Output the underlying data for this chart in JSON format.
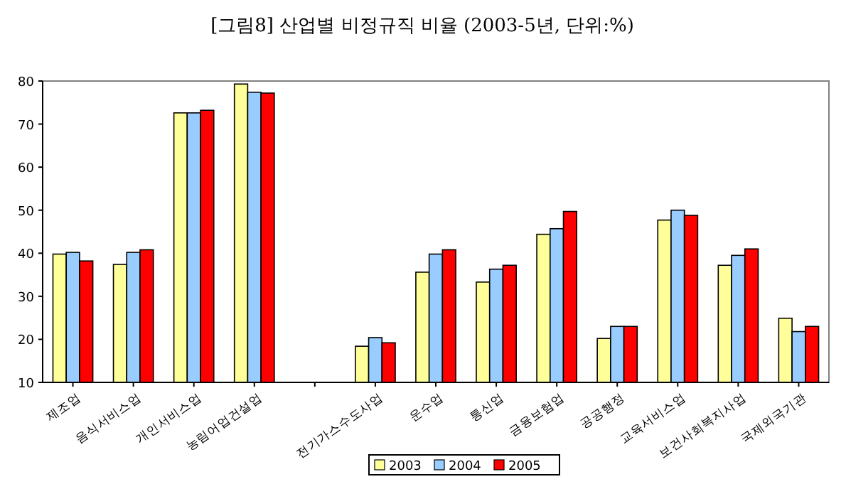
{
  "chart_data": {
    "type": "bar",
    "title": "[그림8] 산업별 비정규직 비율 (2003-5년, 단위:%)",
    "categories": [
      "제조업",
      "음식서비스업",
      "개인서비스업",
      "농림어업건설업",
      null,
      "전기가스수도사업",
      "운수업",
      "통신업",
      "금융보험업",
      "공공행정",
      "교육서비스업",
      "보건사회복지사업",
      "국제외국기관"
    ],
    "series": [
      {
        "name": "2003",
        "color": "#ffff99",
        "values": [
          39.8,
          37.4,
          72.6,
          79.3,
          null,
          18.4,
          35.6,
          33.3,
          44.4,
          20.2,
          47.7,
          37.2,
          24.9
        ]
      },
      {
        "name": "2004",
        "color": "#99ccff",
        "values": [
          40.2,
          40.2,
          72.6,
          77.4,
          null,
          20.4,
          39.8,
          36.3,
          45.7,
          23.0,
          50.0,
          39.5,
          21.8
        ]
      },
      {
        "name": "2005",
        "color": "#ff0000",
        "values": [
          38.2,
          40.8,
          73.2,
          77.2,
          null,
          19.2,
          40.8,
          37.2,
          49.7,
          23.0,
          48.8,
          41.0,
          23.0
        ]
      }
    ],
    "ylim": [
      10,
      80
    ],
    "yticks": [
      10,
      20,
      30,
      40,
      50,
      60,
      70,
      80
    ],
    "legend": "bottom"
  }
}
